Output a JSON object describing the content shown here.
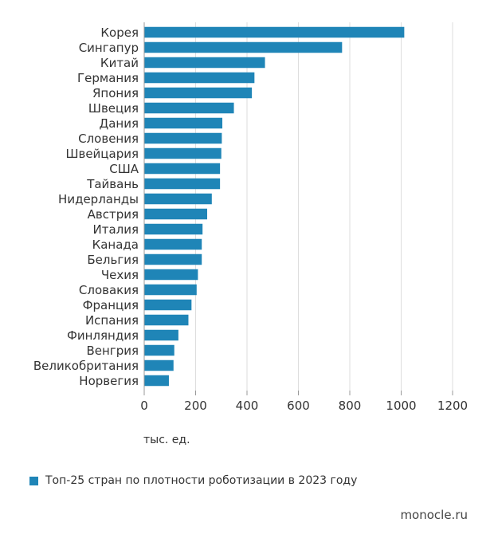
{
  "chart_data": {
    "type": "bar",
    "orientation": "horizontal",
    "categories": [
      "Корея",
      "Сингапур",
      "Китай",
      "Германия",
      "Япония",
      "Швеция",
      "Дания",
      "Словения",
      "Швейцария",
      "США",
      "Тайвань",
      "Нидерланды",
      "Австрия",
      "Италия",
      "Канада",
      "Бельгия",
      "Чехия",
      "Словакия",
      "Франция",
      "Испания",
      "Финляндия",
      "Венгрия",
      "Великобритания",
      "Норвегия"
    ],
    "values": [
      1012,
      770,
      470,
      429,
      419,
      349,
      304,
      302,
      300,
      295,
      295,
      263,
      245,
      227,
      224,
      224,
      209,
      204,
      184,
      172,
      133,
      117,
      114,
      96
    ],
    "series": [
      {
        "name": "Топ-25 стран по плотности роботизации в 2023 году"
      }
    ],
    "xlabel": "тыс. ед.",
    "xlim": [
      0,
      1200
    ],
    "xticks": [
      "0",
      "200",
      "400",
      "600",
      "800",
      "1000",
      "1200"
    ],
    "grid": true,
    "legend_position": "bottom-left",
    "colors": {
      "bar": "#1f85b7",
      "grid": "#dedede",
      "axis": "#999999"
    }
  },
  "source": "monocle.ru"
}
